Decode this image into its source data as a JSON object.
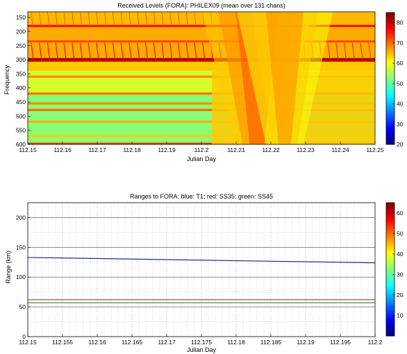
{
  "chart_data": [
    {
      "type": "heatmap",
      "title": "Received Levels (FORA): PHILEX09 (mean over 131 chans)",
      "xlabel": "Julian Day",
      "ylabel": "Frequency",
      "xlim": [
        112.15,
        112.25
      ],
      "ylim": [
        600,
        130
      ],
      "y_reversed": true,
      "x_ticks": [
        "112.15",
        "112.16",
        "112.17",
        "112.18",
        "112.19",
        "112.2",
        "112.21",
        "112.22",
        "112.23",
        "112.24",
        "112.25"
      ],
      "y_ticks": [
        "150",
        "200",
        "250",
        "300",
        "350",
        "400",
        "450",
        "500",
        "550",
        "600"
      ],
      "colorbar": {
        "range": [
          20,
          85
        ],
        "ticks": [
          "20",
          "30",
          "40",
          "50",
          "60",
          "70",
          "80"
        ],
        "colormap": "jet"
      },
      "background_levels": [
        {
          "freq": [
            130,
            175
          ],
          "level": 65
        },
        {
          "freq": [
            175,
            300
          ],
          "level": 66
        },
        {
          "freq": [
            300,
            340
          ],
          "level": 64
        },
        {
          "freq": [
            340,
            420
          ],
          "level": 58
        },
        {
          "freq": [
            420,
            600
          ],
          "level": 53
        }
      ],
      "tonal_lines": [
        {
          "freq": 180,
          "level": 76
        },
        {
          "freq": 235,
          "level": 72
        },
        {
          "freq": 298,
          "level": 84
        },
        {
          "freq": 303,
          "level": 80
        },
        {
          "freq": 360,
          "level": 68
        },
        {
          "freq": 420,
          "level": 70
        },
        {
          "freq": 455,
          "level": 68
        },
        {
          "freq": 478,
          "level": 70
        },
        {
          "freq": 520,
          "level": 66
        },
        {
          "freq": 570,
          "level": 64
        },
        {
          "freq": 598,
          "level": 74
        }
      ],
      "broadband_events": [
        {
          "day": 112.216,
          "width": 0.0035,
          "level": 72
        },
        {
          "day": 112.224,
          "width": 0.003,
          "level": 68
        }
      ]
    },
    {
      "type": "line",
      "title": "Ranges to FORA: blue: T1; red: SS35; green: SS45",
      "xlabel": "Julian Day",
      "ylabel": "Range (km)",
      "xlim": [
        112.15,
        112.2
      ],
      "ylim": [
        0,
        225
      ],
      "x_ticks": [
        "112.15",
        "112.155",
        "112.16",
        "112.165",
        "112.17",
        "112.175",
        "112.18",
        "112.185",
        "112.19",
        "112.195",
        "112.2"
      ],
      "y_ticks": [
        "0",
        "50",
        "100",
        "150",
        "200"
      ],
      "colorbar": {
        "range": [
          0,
          65
        ],
        "ticks": [
          "10",
          "20",
          "30",
          "40",
          "50",
          "60"
        ],
        "colormap": "jet"
      },
      "series": [
        {
          "name": "T1",
          "color": "#1f2a8a",
          "x": [
            112.15,
            112.2
          ],
          "y": [
            133,
            124
          ]
        },
        {
          "name": "SS35",
          "color": "#c03030",
          "x": [
            112.15,
            112.2
          ],
          "y": [
            62,
            62
          ]
        },
        {
          "name": "SS45",
          "color": "#2a9a3a",
          "x": [
            112.15,
            112.2
          ],
          "y": [
            57,
            57
          ]
        }
      ]
    }
  ]
}
